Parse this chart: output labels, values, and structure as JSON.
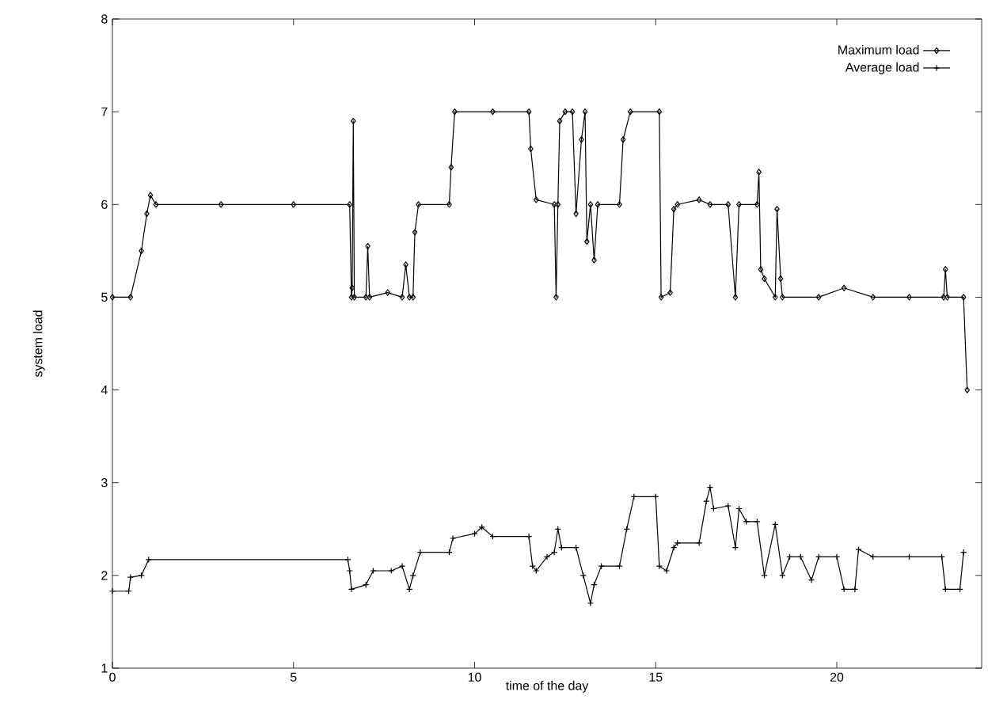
{
  "chart_data": {
    "type": "line",
    "xlabel": "time of the day",
    "ylabel": "system load",
    "xlim": [
      0,
      24
    ],
    "ylim": [
      1,
      8
    ],
    "xticks": [
      0,
      5,
      10,
      15,
      20
    ],
    "yticks": [
      1,
      2,
      3,
      4,
      5,
      6,
      7,
      8
    ],
    "legend": "top right",
    "grid": false,
    "line_style": "solid",
    "series": [
      {
        "name": "Maximum load",
        "color": "#000000",
        "marker": "diamond",
        "x": [
          0,
          0.5,
          0.8,
          0.95,
          1.05,
          1.2,
          3,
          5,
          6.55,
          6.6,
          6.62,
          6.65,
          6.68,
          7.0,
          7.05,
          7.1,
          7.6,
          8.0,
          8.1,
          8.2,
          8.3,
          8.35,
          8.45,
          9.3,
          9.35,
          9.45,
          10.5,
          11.5,
          11.55,
          11.7,
          12.2,
          12.25,
          12.3,
          12.35,
          12.5,
          12.7,
          12.8,
          12.95,
          13.05,
          13.1,
          13.2,
          13.3,
          13.4,
          14.0,
          14.1,
          14.3,
          15.1,
          15.15,
          15.4,
          15.5,
          15.6,
          16.2,
          16.5,
          17.0,
          17.2,
          17.3,
          17.8,
          17.85,
          17.9,
          18.0,
          18.3,
          18.35,
          18.45,
          18.5,
          19.5,
          20.2,
          21,
          22,
          22.95,
          23.0,
          23.05,
          23.5,
          23.6
        ],
        "values": [
          5,
          5,
          5.5,
          5.9,
          6.1,
          6,
          6,
          6,
          6,
          5,
          5.1,
          6.9,
          5,
          5,
          5.55,
          5,
          5.05,
          5,
          5.35,
          5,
          5,
          5.7,
          6,
          6,
          6.4,
          7,
          7,
          7,
          6.6,
          6.05,
          6,
          5.0,
          6.0,
          6.9,
          7,
          7,
          5.9,
          6.7,
          7,
          5.6,
          6.0,
          5.4,
          6,
          6,
          6.7,
          7,
          7,
          5.0,
          5.05,
          5.95,
          6.0,
          6.05,
          6,
          6,
          5.0,
          6.0,
          6,
          6.35,
          5.3,
          5.2,
          5.0,
          5.95,
          5.2,
          5,
          5,
          5.1,
          5,
          5,
          5,
          5.3,
          5,
          5,
          4
        ]
      },
      {
        "name": "Average load",
        "color": "#000000",
        "marker": "cross",
        "x": [
          0,
          0.45,
          0.5,
          0.8,
          1.0,
          6.5,
          6.55,
          6.6,
          7.0,
          7.2,
          7.7,
          8.0,
          8.2,
          8.3,
          8.5,
          9.3,
          9.4,
          10.0,
          10.2,
          10.5,
          11.5,
          11.6,
          11.7,
          12.0,
          12.2,
          12.3,
          12.4,
          12.8,
          13.0,
          13.2,
          13.3,
          13.5,
          14.0,
          14.2,
          14.4,
          15.0,
          15.1,
          15.3,
          15.5,
          15.6,
          16.2,
          16.4,
          16.5,
          16.6,
          17.0,
          17.2,
          17.3,
          17.5,
          17.8,
          18.0,
          18.3,
          18.5,
          18.7,
          19.0,
          19.3,
          19.5,
          20.0,
          20.2,
          20.5,
          20.6,
          21.0,
          22.0,
          22.9,
          23.0,
          23.4,
          23.5
        ],
        "values": [
          1.83,
          1.83,
          1.98,
          2.0,
          2.17,
          2.17,
          2.05,
          1.85,
          1.9,
          2.05,
          2.05,
          2.1,
          1.85,
          2.0,
          2.25,
          2.25,
          2.4,
          2.45,
          2.52,
          2.42,
          2.42,
          2.1,
          2.05,
          2.2,
          2.25,
          2.5,
          2.3,
          2.3,
          2.0,
          1.7,
          1.9,
          2.1,
          2.1,
          2.5,
          2.85,
          2.85,
          2.1,
          2.05,
          2.3,
          2.35,
          2.35,
          2.8,
          2.95,
          2.72,
          2.75,
          2.3,
          2.72,
          2.58,
          2.58,
          2.0,
          2.55,
          2.0,
          2.2,
          2.2,
          1.95,
          2.2,
          2.2,
          1.85,
          1.85,
          2.28,
          2.2,
          2.2,
          2.2,
          1.85,
          1.85,
          2.25
        ]
      }
    ]
  }
}
